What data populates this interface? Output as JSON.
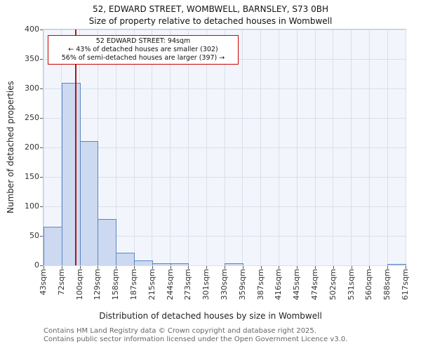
{
  "title": {
    "line1": "52, EDWARD STREET, WOMBWELL, BARNSLEY, S73 0BH",
    "line2": "Size of property relative to detached houses in Wombwell"
  },
  "chart_data": {
    "type": "bar",
    "title": "52, EDWARD STREET, WOMBWELL, BARNSLEY, S73 0BH - Size of property relative to detached houses in Wombwell",
    "categories": [
      "43sqm",
      "72sqm",
      "100sqm",
      "129sqm",
      "158sqm",
      "187sqm",
      "215sqm",
      "244sqm",
      "273sqm",
      "301sqm",
      "330sqm",
      "359sqm",
      "387sqm",
      "416sqm",
      "445sqm",
      "474sqm",
      "502sqm",
      "531sqm",
      "560sqm",
      "588sqm",
      "617sqm"
    ],
    "bin_edges_sqm": [
      43,
      72,
      100,
      129,
      158,
      187,
      215,
      244,
      273,
      301,
      330,
      359,
      387,
      416,
      445,
      474,
      502,
      531,
      560,
      588,
      617
    ],
    "values": [
      65,
      310,
      211,
      78,
      22,
      8,
      3,
      3,
      0,
      0,
      3,
      0,
      0,
      0,
      0,
      0,
      0,
      0,
      0,
      2
    ],
    "xlabel": "Distribution of detached houses by size in Wombwell",
    "ylabel": "Number of detached properties",
    "ylim": [
      0,
      400
    ],
    "ytick_step": 50,
    "grid": true,
    "legend": "none",
    "bar_fill": "#ccd9f0",
    "bar_border": "#5c85c4",
    "marker": {
      "value_sqm": 94,
      "color": "#b01515"
    }
  },
  "annotation": {
    "line1": "52 EDWARD STREET: 94sqm",
    "line2": "← 43% of detached houses are smaller (302)",
    "line3": "56% of semi-detached houses are larger (397) →"
  },
  "footer": {
    "line1": "Contains HM Land Registry data © Crown copyright and database right 2025.",
    "line2": "Contains public sector information licensed under the Open Government Licence v3.0."
  }
}
